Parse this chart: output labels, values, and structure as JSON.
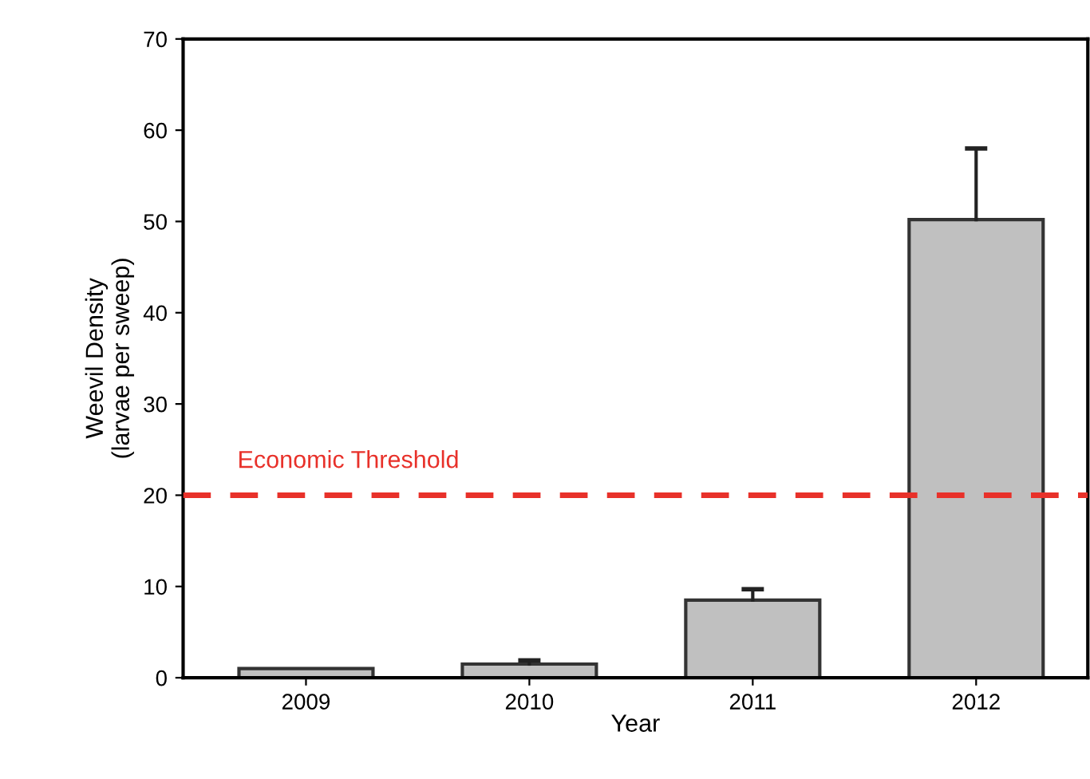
{
  "chart_data": {
    "type": "bar",
    "xlabel": "Year",
    "ylabel": "Weevil Density\n(larvae per sweep)",
    "categories": [
      "2009",
      "2010",
      "2011",
      "2012"
    ],
    "values": [
      1.0,
      1.5,
      8.5,
      50.2
    ],
    "errors": [
      null,
      [
        1.5,
        1.9
      ],
      [
        8.5,
        9.7
      ],
      [
        50.2,
        58.0
      ]
    ],
    "color": "#c0c0c0",
    "ylim": [
      0,
      70
    ],
    "yticks": [
      0,
      10,
      20,
      30,
      40,
      50,
      60,
      70
    ],
    "ref_lines": [
      {
        "axis": "y",
        "value": 20,
        "label": "Economic Threshold",
        "color": "#e8312a",
        "line_style": "dashed"
      }
    ],
    "grid": false,
    "legend": false
  }
}
